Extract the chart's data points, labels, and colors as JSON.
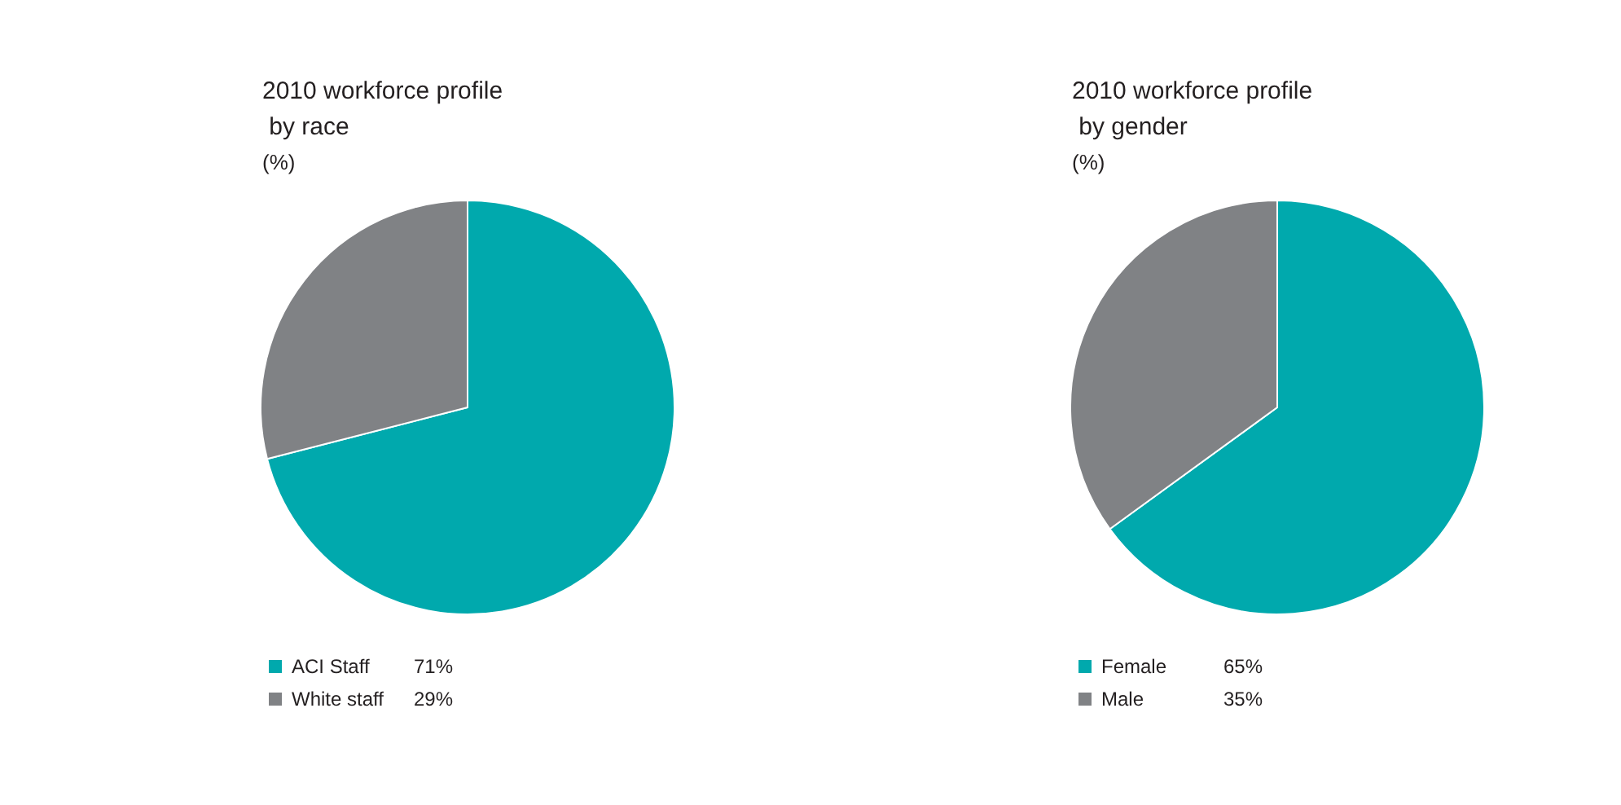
{
  "chart_data": [
    {
      "type": "pie",
      "title": "2010 workforce profile by race",
      "subtitle": "(%)",
      "categories": [
        "ACI Staff",
        "White staff"
      ],
      "values": [
        71,
        29
      ],
      "value_labels": [
        "71%",
        "29%"
      ],
      "colors": [
        "#00a9ad",
        "#808285"
      ],
      "legend": "bottom left"
    },
    {
      "type": "pie",
      "title": "2010 workforce profile by gender",
      "subtitle": "(%)",
      "categories": [
        "Female",
        "Male"
      ],
      "values": [
        65,
        35
      ],
      "value_labels": [
        "65%",
        "35%"
      ],
      "colors": [
        "#00a9ad",
        "#808285"
      ],
      "legend": "bottom left"
    }
  ]
}
